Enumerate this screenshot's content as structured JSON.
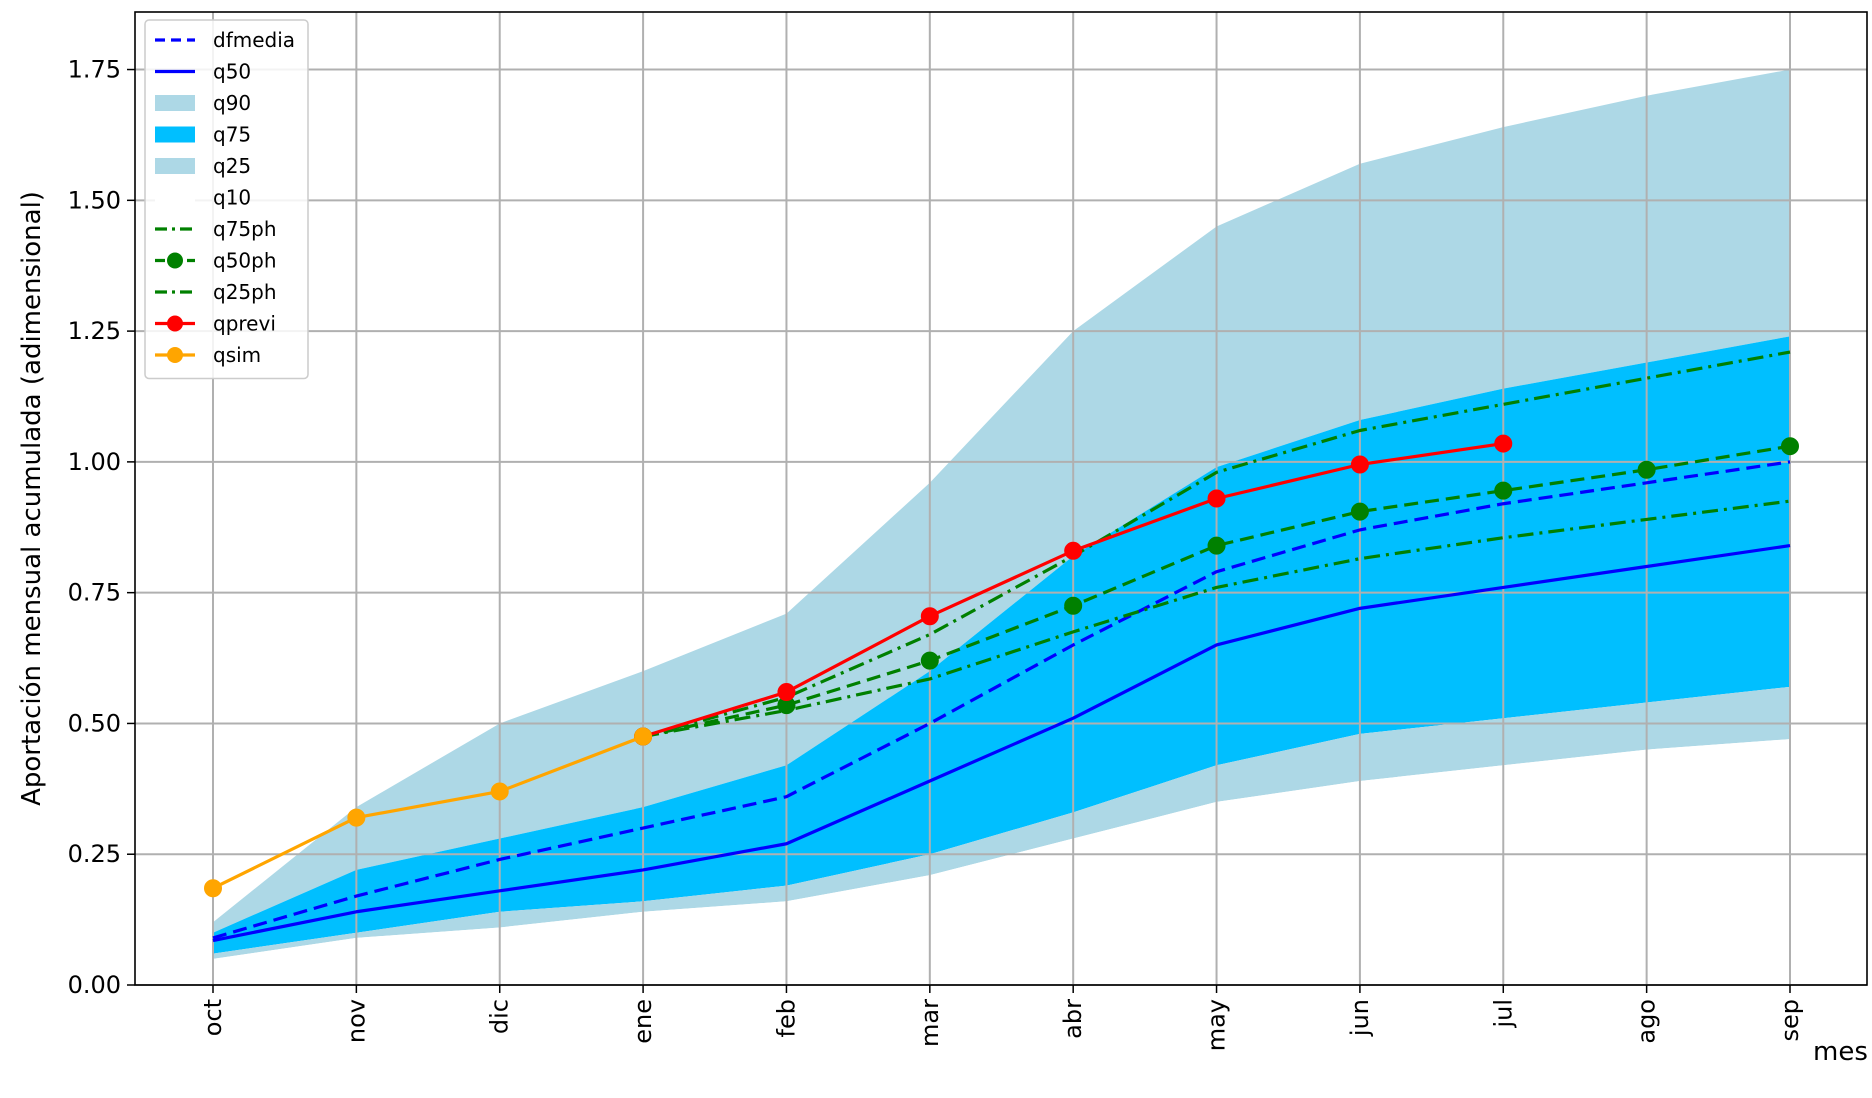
{
  "chart_data": {
    "type": "line",
    "xlabel": "mes",
    "ylabel": "Aportación mensual acumulada (adimensional)",
    "categories": [
      "oct",
      "nov",
      "dic",
      "ene",
      "feb",
      "mar",
      "abr",
      "may",
      "jun",
      "jul",
      "ago",
      "sep"
    ],
    "ylim": [
      0,
      1.86
    ],
    "yticks": [
      "0.00",
      "0.25",
      "0.50",
      "0.75",
      "1.00",
      "1.25",
      "1.50",
      "1.75"
    ],
    "grid": true,
    "legend_position": "upper-left",
    "bands": [
      {
        "name": "q90",
        "color": "#add8e6",
        "upper": [
          0.12,
          0.34,
          0.5,
          0.6,
          0.71,
          0.96,
          1.25,
          1.45,
          1.57,
          1.64,
          1.7,
          1.75
        ],
        "lower": [
          0.1,
          0.22,
          0.28,
          0.34,
          0.42,
          0.6,
          0.82,
          0.99,
          1.08,
          1.14,
          1.19,
          1.24
        ]
      },
      {
        "name": "q75",
        "color": "#00bfff",
        "upper": [
          0.1,
          0.22,
          0.28,
          0.34,
          0.42,
          0.6,
          0.82,
          0.99,
          1.08,
          1.14,
          1.19,
          1.24
        ],
        "lower": [
          0.06,
          0.1,
          0.14,
          0.16,
          0.19,
          0.25,
          0.33,
          0.42,
          0.48,
          0.51,
          0.54,
          0.57
        ]
      },
      {
        "name": "q25",
        "color": "#add8e6",
        "upper": [
          0.06,
          0.1,
          0.14,
          0.16,
          0.19,
          0.25,
          0.33,
          0.42,
          0.48,
          0.51,
          0.54,
          0.57
        ],
        "lower": [
          0.05,
          0.09,
          0.11,
          0.14,
          0.16,
          0.21,
          0.28,
          0.35,
          0.39,
          0.42,
          0.45,
          0.47
        ]
      },
      {
        "name": "q10",
        "color": "#ffffff",
        "upper": [
          0.05,
          0.09,
          0.11,
          0.14,
          0.16,
          0.21,
          0.28,
          0.35,
          0.39,
          0.42,
          0.45,
          0.47
        ],
        "lower": [
          0,
          0,
          0,
          0,
          0,
          0,
          0,
          0,
          0,
          0,
          0,
          0
        ]
      }
    ],
    "series": [
      {
        "name": "dfmedia",
        "color": "#0000ff",
        "style": "dashed",
        "marker": false,
        "values": [
          0.09,
          0.17,
          0.24,
          0.3,
          0.36,
          0.5,
          0.65,
          0.79,
          0.87,
          0.92,
          0.96,
          1.0
        ]
      },
      {
        "name": "q50",
        "color": "#0000ff",
        "style": "solid",
        "marker": false,
        "values": [
          0.085,
          0.14,
          0.18,
          0.22,
          0.27,
          0.39,
          0.51,
          0.65,
          0.72,
          0.76,
          0.8,
          0.84
        ]
      },
      {
        "name": "q75ph",
        "color": "#008000",
        "style": "dashdot",
        "marker": false,
        "values": [
          null,
          null,
          null,
          0.475,
          0.55,
          0.67,
          0.82,
          0.98,
          1.06,
          1.11,
          1.16,
          1.21
        ]
      },
      {
        "name": "q50ph",
        "color": "#008000",
        "style": "dashed",
        "marker": true,
        "values": [
          null,
          null,
          null,
          0.475,
          0.535,
          0.62,
          0.725,
          0.84,
          0.905,
          0.945,
          0.985,
          1.03
        ]
      },
      {
        "name": "q25ph",
        "color": "#008000",
        "style": "dashdot",
        "marker": false,
        "values": [
          null,
          null,
          null,
          0.475,
          0.525,
          0.585,
          0.675,
          0.76,
          0.815,
          0.855,
          0.89,
          0.925
        ]
      },
      {
        "name": "qprevi",
        "color": "#ff0000",
        "style": "solid",
        "marker": true,
        "values": [
          null,
          null,
          null,
          0.475,
          0.56,
          0.705,
          0.83,
          0.93,
          0.995,
          1.035,
          null,
          null
        ]
      },
      {
        "name": "qsim",
        "color": "#ffa500",
        "style": "solid",
        "marker": true,
        "values": [
          0.185,
          0.32,
          0.37,
          0.475,
          null,
          null,
          null,
          null,
          null,
          null,
          null,
          null
        ]
      }
    ],
    "legend_order": [
      "dfmedia",
      "q50",
      "q90",
      "q75",
      "q25",
      "q10",
      "q75ph",
      "q50ph",
      "q25ph",
      "qprevi",
      "qsim"
    ]
  }
}
